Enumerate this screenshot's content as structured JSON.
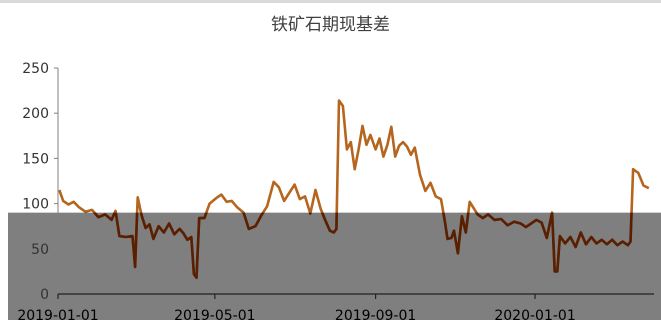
{
  "chart_data": {
    "type": "line",
    "title": "铁矿石期现基差",
    "xlabel": "",
    "ylabel": "",
    "ylim": [
      0,
      250
    ],
    "yticks": [
      "0",
      "50",
      "100",
      "150",
      "200",
      "250"
    ],
    "xticks": [
      "2019-01-01",
      "2019-05-01",
      "2019-09-01",
      "2020-01-01"
    ],
    "xlim": [
      "2019-01-01",
      "2020-04-01"
    ],
    "grid": false,
    "legend": "none",
    "overlay": {
      "from_value": 0,
      "to_value": 90,
      "color": "#4d4d4d",
      "opacity": 0.72
    },
    "colors": {
      "line_light": "#b5651d",
      "line_dark": "#5a1f00"
    },
    "series": [
      {
        "points": [
          [
            "2019-01-02",
            115
          ],
          [
            "2019-01-05",
            103
          ],
          [
            "2019-01-09",
            99
          ],
          [
            "2019-01-13",
            102
          ],
          [
            "2019-01-17",
            96
          ],
          [
            "2019-01-22",
            91
          ],
          [
            "2019-01-27",
            93
          ],
          [
            "2019-02-01",
            85
          ],
          [
            "2019-02-06",
            88
          ],
          [
            "2019-02-11",
            82
          ],
          [
            "2019-02-14",
            92
          ],
          [
            "2019-02-17",
            64
          ],
          [
            "2019-02-22",
            63
          ],
          [
            "2019-02-27",
            64
          ],
          [
            "2019-03-01",
            30
          ],
          [
            "2019-03-03",
            107
          ],
          [
            "2019-03-06",
            87
          ],
          [
            "2019-03-09",
            73
          ],
          [
            "2019-03-12",
            77
          ],
          [
            "2019-03-15",
            61
          ],
          [
            "2019-03-19",
            75
          ],
          [
            "2019-03-23",
            68
          ],
          [
            "2019-03-27",
            78
          ],
          [
            "2019-03-31",
            66
          ],
          [
            "2019-04-04",
            72
          ],
          [
            "2019-04-07",
            67
          ],
          [
            "2019-04-10",
            60
          ],
          [
            "2019-04-13",
            63
          ],
          [
            "2019-04-15",
            22
          ],
          [
            "2019-04-17",
            18
          ],
          [
            "2019-04-19",
            84
          ],
          [
            "2019-04-23",
            84
          ],
          [
            "2019-04-27",
            100
          ],
          [
            "2019-05-02",
            106
          ],
          [
            "2019-05-06",
            110
          ],
          [
            "2019-05-10",
            102
          ],
          [
            "2019-05-14",
            103
          ],
          [
            "2019-05-18",
            96
          ],
          [
            "2019-05-23",
            90
          ],
          [
            "2019-05-27",
            72
          ],
          [
            "2019-06-01",
            75
          ],
          [
            "2019-06-06",
            88
          ],
          [
            "2019-06-10",
            97
          ],
          [
            "2019-06-15",
            124
          ],
          [
            "2019-06-19",
            118
          ],
          [
            "2019-06-23",
            103
          ],
          [
            "2019-06-27",
            112
          ],
          [
            "2019-07-01",
            121
          ],
          [
            "2019-07-05",
            105
          ],
          [
            "2019-07-09",
            108
          ],
          [
            "2019-07-13",
            89
          ],
          [
            "2019-07-17",
            115
          ],
          [
            "2019-07-21",
            94
          ],
          [
            "2019-07-25",
            80
          ],
          [
            "2019-07-28",
            70
          ],
          [
            "2019-07-31",
            68
          ],
          [
            "2019-08-02",
            72
          ],
          [
            "2019-08-04",
            214
          ],
          [
            "2019-08-07",
            208
          ],
          [
            "2019-08-10",
            160
          ],
          [
            "2019-08-13",
            168
          ],
          [
            "2019-08-16",
            138
          ],
          [
            "2019-08-19",
            160
          ],
          [
            "2019-08-22",
            186
          ],
          [
            "2019-08-25",
            165
          ],
          [
            "2019-08-28",
            176
          ],
          [
            "2019-09-01",
            160
          ],
          [
            "2019-09-04",
            172
          ],
          [
            "2019-09-07",
            152
          ],
          [
            "2019-09-10",
            165
          ],
          [
            "2019-09-13",
            185
          ],
          [
            "2019-09-16",
            152
          ],
          [
            "2019-09-19",
            164
          ],
          [
            "2019-09-22",
            168
          ],
          [
            "2019-09-25",
            163
          ],
          [
            "2019-09-28",
            154
          ],
          [
            "2019-10-01",
            162
          ],
          [
            "2019-10-05",
            132
          ],
          [
            "2019-10-09",
            114
          ],
          [
            "2019-10-13",
            123
          ],
          [
            "2019-10-17",
            108
          ],
          [
            "2019-10-21",
            105
          ],
          [
            "2019-10-24",
            80
          ],
          [
            "2019-10-26",
            61
          ],
          [
            "2019-10-29",
            62
          ],
          [
            "2019-10-31",
            70
          ],
          [
            "2019-11-03",
            45
          ],
          [
            "2019-11-06",
            86
          ],
          [
            "2019-11-09",
            68
          ],
          [
            "2019-11-12",
            102
          ],
          [
            "2019-11-15",
            95
          ],
          [
            "2019-11-18",
            88
          ],
          [
            "2019-11-22",
            84
          ],
          [
            "2019-11-26",
            88
          ],
          [
            "2019-12-01",
            82
          ],
          [
            "2019-12-06",
            83
          ],
          [
            "2019-12-11",
            76
          ],
          [
            "2019-12-16",
            80
          ],
          [
            "2019-12-21",
            78
          ],
          [
            "2019-12-25",
            74
          ],
          [
            "2019-12-29",
            78
          ],
          [
            "2020-01-02",
            82
          ],
          [
            "2020-01-06",
            79
          ],
          [
            "2020-01-10",
            62
          ],
          [
            "2020-01-14",
            90
          ],
          [
            "2020-01-16",
            25
          ],
          [
            "2020-01-18",
            25
          ],
          [
            "2020-01-20",
            64
          ],
          [
            "2020-01-24",
            56
          ],
          [
            "2020-01-28",
            63
          ],
          [
            "2020-02-01",
            52
          ],
          [
            "2020-02-05",
            68
          ],
          [
            "2020-02-09",
            55
          ],
          [
            "2020-02-13",
            63
          ],
          [
            "2020-02-17",
            56
          ],
          [
            "2020-02-21",
            60
          ],
          [
            "2020-02-25",
            55
          ],
          [
            "2020-02-29",
            60
          ],
          [
            "2020-03-04",
            54
          ],
          [
            "2020-03-08",
            58
          ],
          [
            "2020-03-12",
            54
          ],
          [
            "2020-03-14",
            58
          ],
          [
            "2020-03-16",
            138
          ],
          [
            "2020-03-20",
            134
          ],
          [
            "2020-03-24",
            120
          ],
          [
            "2020-03-28",
            117
          ]
        ]
      }
    ]
  }
}
